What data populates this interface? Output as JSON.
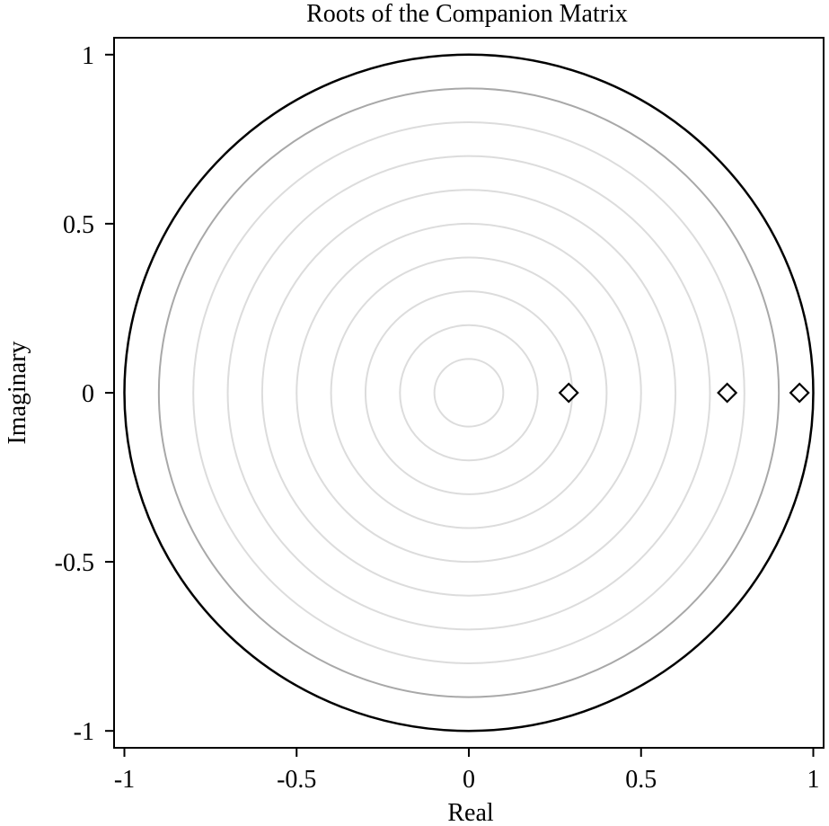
{
  "chart_data": {
    "type": "scatter",
    "title": "Roots of the Companion Matrix",
    "xlabel": "Real",
    "ylabel": "Imaginary",
    "xlim": [
      -1.03,
      1.03
    ],
    "ylim": [
      -1.05,
      1.05
    ],
    "xticks": [
      -1,
      -0.5,
      0,
      0.5,
      1
    ],
    "xtick_labels": [
      "-1",
      "-0.5",
      "0",
      "0.5",
      "1"
    ],
    "yticks": [
      -1,
      -0.5,
      0,
      0.5,
      1
    ],
    "ytick_labels": [
      "-1",
      "-0.5",
      "0",
      "0.5",
      "1"
    ],
    "grid": false,
    "unit_circle": {
      "radius": 1,
      "color": "#000000"
    },
    "reference_circle": {
      "radius": 0.9,
      "color": "#a8a8a8"
    },
    "inner_circles": {
      "radii": [
        0.1,
        0.2,
        0.3,
        0.4,
        0.5,
        0.6,
        0.7,
        0.8
      ],
      "color": "#dcdcdc"
    },
    "series": [
      {
        "marker": "diamond",
        "color": "#000000",
        "points": [
          {
            "x": 0.29,
            "y": 0
          },
          {
            "x": 0.75,
            "y": 0
          },
          {
            "x": 0.96,
            "y": 0
          }
        ]
      }
    ]
  }
}
